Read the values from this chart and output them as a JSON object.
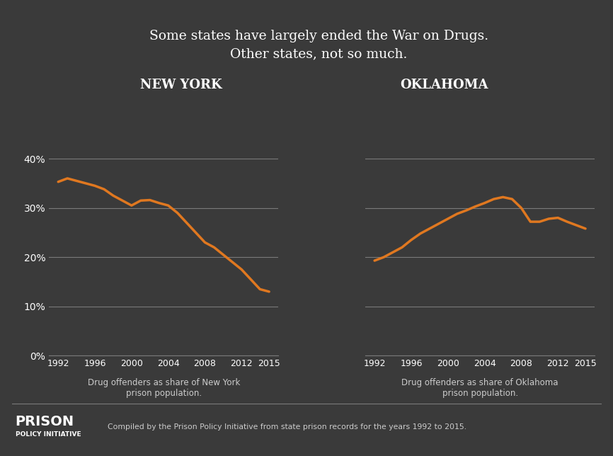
{
  "title": "Some states have largely ended the War on Drugs.\nOther states, not so much.",
  "background_color": "#3a3a3a",
  "line_color": "#e07820",
  "grid_color": "#7a7a7a",
  "text_color": "#ffffff",
  "label_color": "#cccccc",
  "ny_label": "NEW YORK",
  "ok_label": "OKLAHOMA",
  "ny_xlabel": "Drug offenders as share of New York\nprison population.",
  "ok_xlabel": "Drug offenders as share of Oklahoma\nprison population.",
  "ny_years": [
    1992,
    1993,
    1994,
    1995,
    1996,
    1997,
    1998,
    1999,
    2000,
    2001,
    2002,
    2003,
    2004,
    2005,
    2006,
    2007,
    2008,
    2009,
    2010,
    2011,
    2012,
    2013,
    2014,
    2015
  ],
  "ny_values": [
    0.353,
    0.36,
    0.355,
    0.35,
    0.345,
    0.338,
    0.325,
    0.315,
    0.305,
    0.315,
    0.316,
    0.31,
    0.305,
    0.29,
    0.27,
    0.25,
    0.23,
    0.22,
    0.205,
    0.19,
    0.175,
    0.155,
    0.135,
    0.13
  ],
  "ok_years": [
    1992,
    1993,
    1994,
    1995,
    1996,
    1997,
    1998,
    1999,
    2000,
    2001,
    2002,
    2003,
    2004,
    2005,
    2006,
    2007,
    2008,
    2009,
    2010,
    2011,
    2012,
    2013,
    2014,
    2015
  ],
  "ok_values": [
    0.193,
    0.2,
    0.21,
    0.22,
    0.235,
    0.248,
    0.258,
    0.268,
    0.278,
    0.288,
    0.295,
    0.303,
    0.31,
    0.318,
    0.322,
    0.318,
    0.3,
    0.272,
    0.272,
    0.278,
    0.28,
    0.272,
    0.265,
    0.258
  ],
  "yticks": [
    0.0,
    0.1,
    0.2,
    0.3,
    0.4
  ],
  "ytick_labels": [
    "0%",
    "10%",
    "20%",
    "30%",
    "40%"
  ],
  "xticks": [
    1992,
    1996,
    2000,
    2004,
    2008,
    2012,
    2015
  ],
  "ylim": [
    0.0,
    0.5
  ],
  "footer_text": "Compiled by the Prison Policy Initiative from state prison records for the years 1992 to 2015.",
  "logo_line1": "PRISON",
  "logo_line2": "POLICY INITIATIVE"
}
